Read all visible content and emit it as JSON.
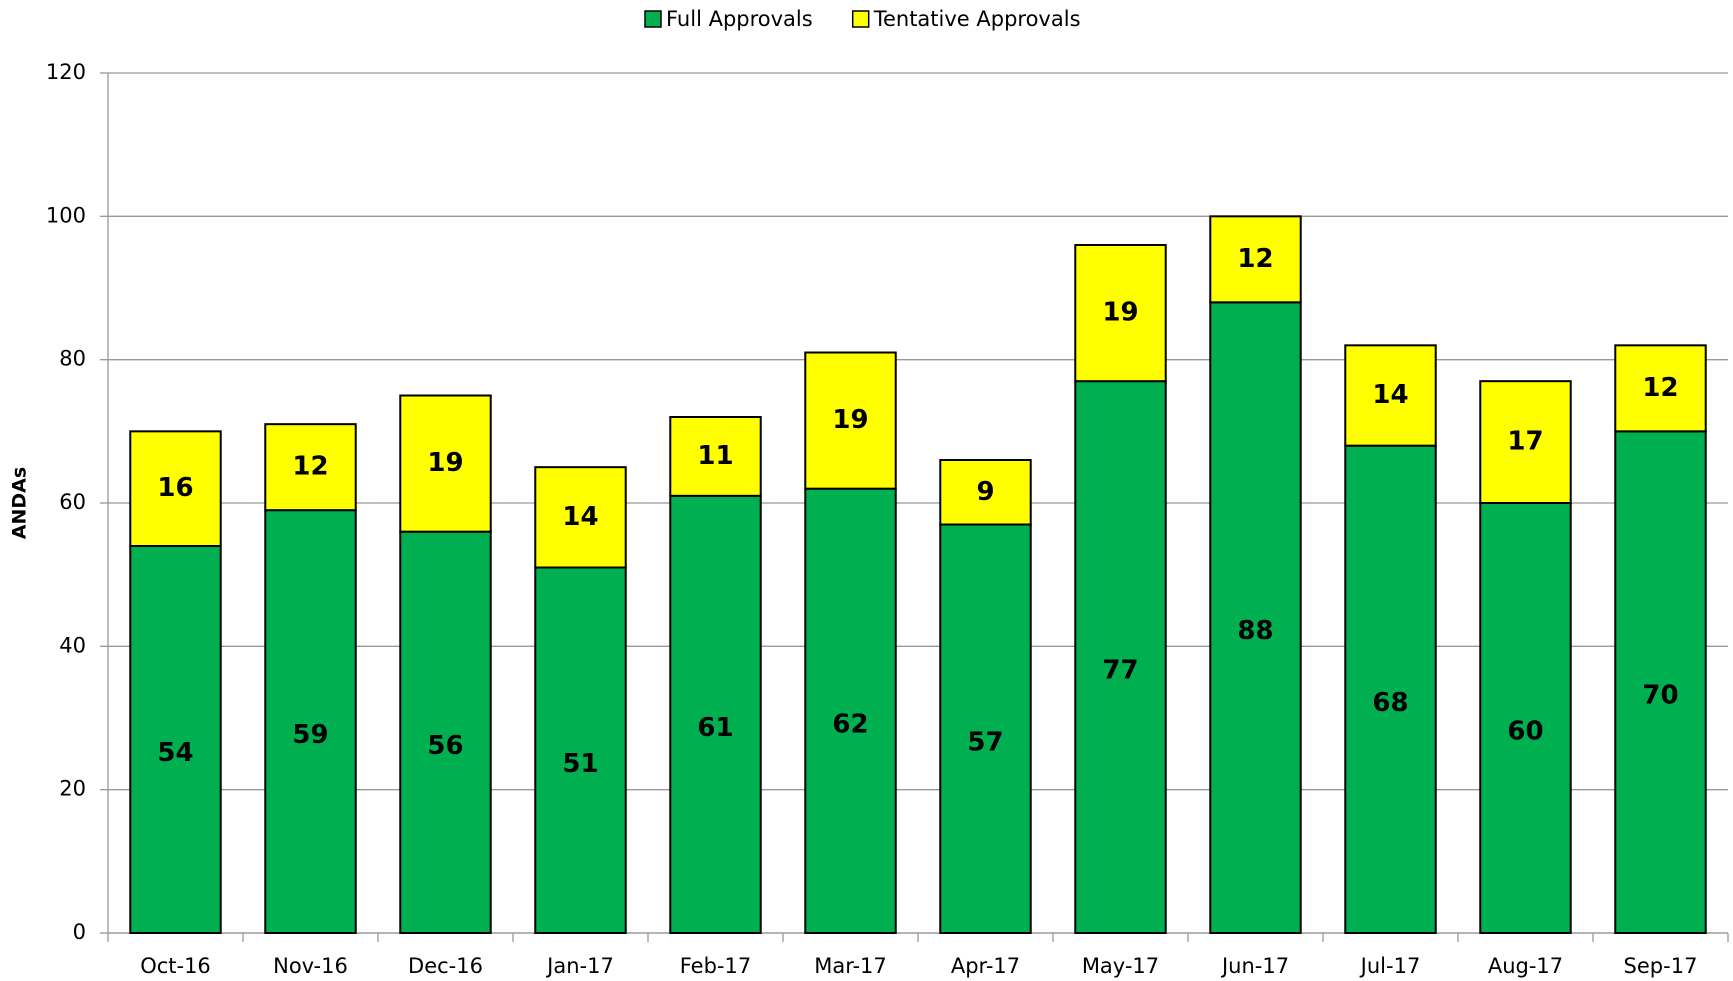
{
  "chart_data": {
    "type": "stacked_bar",
    "y_label": "ANDAs",
    "categories": [
      "Oct-16",
      "Nov-16",
      "Dec-16",
      "Jan-17",
      "Feb-17",
      "Mar-17",
      "Apr-17",
      "May-17",
      "Jun-17",
      "Jul-17",
      "Aug-17",
      "Sep-17"
    ],
    "series": [
      {
        "name": "Full Approvals",
        "color": "#00b050",
        "values": [
          54,
          59,
          56,
          51,
          61,
          62,
          57,
          77,
          88,
          68,
          60,
          70
        ]
      },
      {
        "name": "Tentative Approvals",
        "color": "#ffff00",
        "values": [
          16,
          12,
          19,
          14,
          11,
          19,
          9,
          19,
          12,
          14,
          17,
          12
        ]
      }
    ],
    "ylim": [
      0,
      120
    ],
    "yticks": [
      0,
      20,
      40,
      60,
      80,
      100,
      120
    ],
    "grid": true,
    "legend": "top"
  }
}
